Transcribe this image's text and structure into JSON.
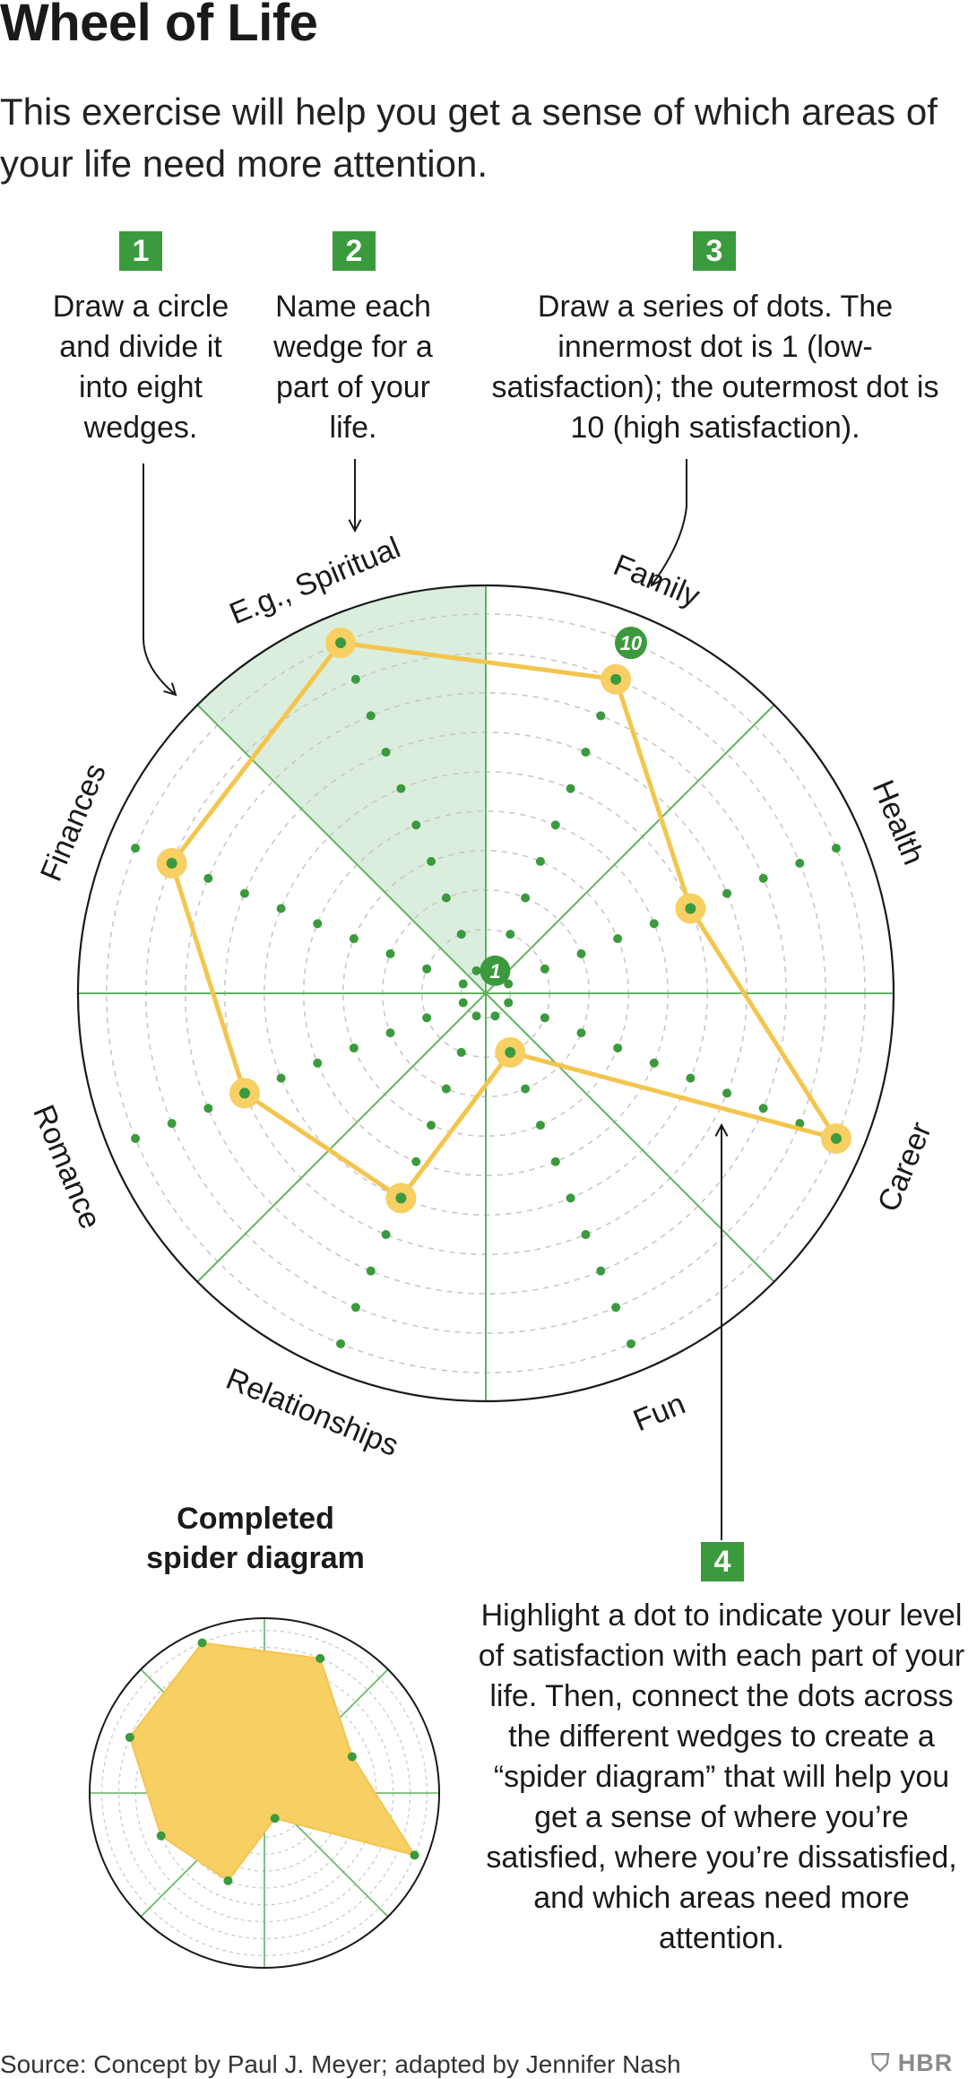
{
  "title": "Wheel of Life",
  "subtitle": "This exercise will help you get a sense of which areas of your life need more attention.",
  "steps": [
    {
      "number": "1",
      "text": "Draw a circle and divide it into eight wedges."
    },
    {
      "number": "2",
      "text": "Name each wedge for a part of your life."
    },
    {
      "number": "3",
      "text": "Draw a series of dots. The innermost dot is 1 (low-satisfaction); the outermost dot is 10 (high satisfaction)."
    },
    {
      "number": "4",
      "text": "Highlight a dot to indicate your level of satisfaction with each part of your life. Then, connect the dots across the different wedges to create a “spider diagram” that will help you get a sense of where you’re satisfied, where you’re dissatisfied, and which areas need more attention."
    }
  ],
  "wheel": {
    "scale_min": "1",
    "scale_max": "10",
    "wedges": [
      {
        "label": "Family",
        "rating": 9
      },
      {
        "label": "Health",
        "rating": 6
      },
      {
        "label": "Career",
        "rating": 10
      },
      {
        "label": "Fun",
        "rating": 2
      },
      {
        "label": "Relationships",
        "rating": 6
      },
      {
        "label": "Romance",
        "rating": 7
      },
      {
        "label": "Finances",
        "rating": 9
      },
      {
        "label": "E.g., Spiritual",
        "rating": 10
      }
    ]
  },
  "completed": {
    "caption": "Completed spider diagram"
  },
  "source": "Source: Concept by Paul J. Meyer; adapted by Jennifer Nash",
  "logo": "HBR",
  "colors": {
    "green": "#3a9a3d",
    "highlight": "#f7cf63",
    "highlight_stroke": "#f4c54e",
    "wedge_fill": "#dbeede",
    "grid": "#c8c8c8"
  }
}
